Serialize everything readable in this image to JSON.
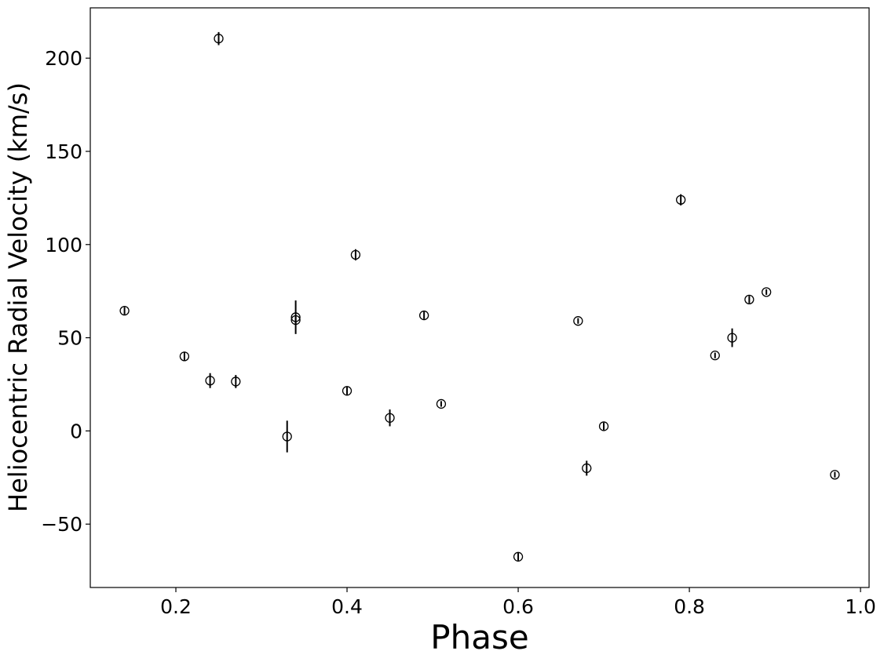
{
  "chart_data": {
    "type": "scatter",
    "xlabel": "Phase",
    "ylabel": "Heliocentric Radial Velocity (km/s)",
    "xlim": [
      0.1,
      1.01
    ],
    "ylim": [
      -84,
      227
    ],
    "xticks": [
      0.2,
      0.4,
      0.6,
      0.8,
      1.0
    ],
    "xtick_labels": [
      "0.2",
      "0.4",
      "0.6",
      "0.8",
      "1.0"
    ],
    "yticks": [
      -50,
      0,
      50,
      100,
      150,
      200
    ],
    "ytick_labels": [
      "−50",
      "0",
      "50",
      "100",
      "150",
      "200"
    ],
    "grid": false,
    "marker": "open-circle",
    "color": "#000000",
    "series": [
      {
        "points": [
          {
            "x": 0.14,
            "y": 64.5,
            "err": 2.0
          },
          {
            "x": 0.21,
            "y": 40.0,
            "err": 2.5
          },
          {
            "x": 0.24,
            "y": 27.0,
            "err": 4.0
          },
          {
            "x": 0.25,
            "y": 210.5,
            "err": 3.5
          },
          {
            "x": 0.27,
            "y": 26.5,
            "err": 3.5
          },
          {
            "x": 0.33,
            "y": -3.0,
            "err": 8.5
          },
          {
            "x": 0.34,
            "y": 61.0,
            "err": 9.0
          },
          {
            "x": 0.34,
            "y": 59.5,
            "err": 2.0
          },
          {
            "x": 0.4,
            "y": 21.5,
            "err": 2.0
          },
          {
            "x": 0.41,
            "y": 94.5,
            "err": 3.0
          },
          {
            "x": 0.45,
            "y": 7.0,
            "err": 4.5
          },
          {
            "x": 0.49,
            "y": 62.0,
            "err": 2.0
          },
          {
            "x": 0.51,
            "y": 14.5,
            "err": 1.5
          },
          {
            "x": 0.6,
            "y": -67.5,
            "err": 2.0
          },
          {
            "x": 0.67,
            "y": 59.0,
            "err": 1.5
          },
          {
            "x": 0.68,
            "y": -20.0,
            "err": 4.0
          },
          {
            "x": 0.7,
            "y": 2.5,
            "err": 2.0
          },
          {
            "x": 0.79,
            "y": 124.0,
            "err": 3.0
          },
          {
            "x": 0.83,
            "y": 40.5,
            "err": 1.5
          },
          {
            "x": 0.85,
            "y": 50.0,
            "err": 5.0
          },
          {
            "x": 0.87,
            "y": 70.5,
            "err": 2.0
          },
          {
            "x": 0.89,
            "y": 74.5,
            "err": 1.5
          },
          {
            "x": 0.97,
            "y": -23.5,
            "err": 1.5
          }
        ]
      }
    ]
  }
}
